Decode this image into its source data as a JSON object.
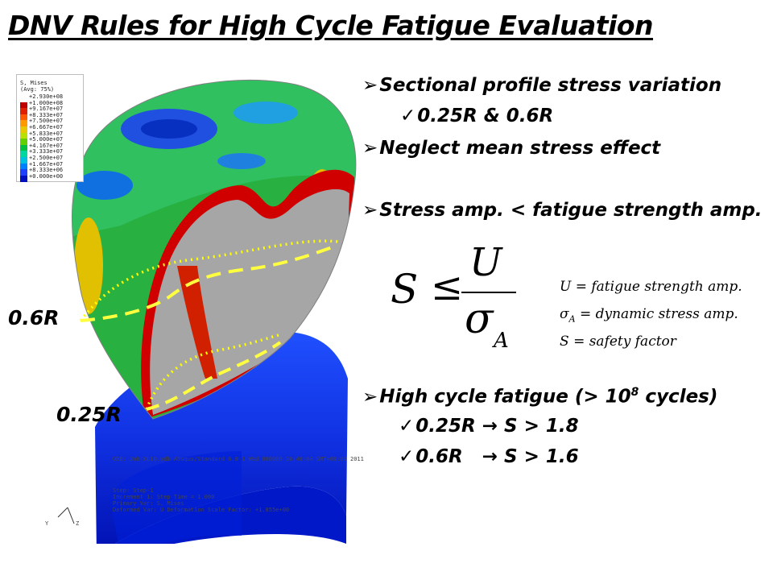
{
  "title": "DNV Rules for High Cycle Fatigue Evaluation",
  "legend": {
    "title_line1": "S, Mises",
    "title_line2": "(Avg: 75%)",
    "entries": [
      {
        "value": "+2.930e+08",
        "color": "#ffffff"
      },
      {
        "value": "+1.000e+08",
        "color": "#c00000"
      },
      {
        "value": "+9.167e+07",
        "color": "#e02000"
      },
      {
        "value": "+8.333e+07",
        "color": "#ff5a00"
      },
      {
        "value": "+7.500e+07",
        "color": "#ff9a00"
      },
      {
        "value": "+6.667e+07",
        "color": "#e8c800"
      },
      {
        "value": "+5.833e+07",
        "color": "#b8e000"
      },
      {
        "value": "+5.000e+07",
        "color": "#60d000"
      },
      {
        "value": "+4.167e+07",
        "color": "#00c040"
      },
      {
        "value": "+3.333e+07",
        "color": "#00d8a0"
      },
      {
        "value": "+2.500e+07",
        "color": "#00c0e0"
      },
      {
        "value": "+1.667e+07",
        "color": "#0080ff"
      },
      {
        "value": "+8.333e+06",
        "color": "#2040ff"
      },
      {
        "value": "+0.000e+00",
        "color": "#0010c0"
      }
    ]
  },
  "labels": {
    "r06": "0.6R",
    "r025": "0.25R"
  },
  "fig_text": {
    "odb_line": "ODB: Job-XL10.odb   Abaqus/Standard 6.8-1   Wed 000000 16:46:04 GMT+08:00 2011",
    "step_line": "Step: Step-1",
    "inc_line": "Increment    1: Step Time =    1.000",
    "primary_line": "Primary Var: S, Mises",
    "deformed_line": "Deformed Var: U   Deformation Scale Factor: +1.855e+00",
    "axis_y": "Y",
    "axis_z": "Z"
  },
  "bullets": [
    {
      "marker": "➢",
      "text": "Sectional profile stress variation"
    },
    {
      "marker": "✓",
      "text": "0.25R & 0.6R"
    },
    {
      "marker": "➢",
      "text": "Neglect mean stress effect"
    },
    {
      "marker": "➢",
      "text": "Stress amp. < fatigue strength amp."
    },
    {
      "marker": "➢",
      "text_before": "High cycle fatigue (> 10",
      "sup": "8",
      "text_after": " cycles)"
    },
    {
      "marker": "✓",
      "text": "0.25R → S > 1.8"
    },
    {
      "marker": "✓",
      "text": "0.6R   → S > 1.6"
    }
  ],
  "formula": {
    "lhs": "S",
    "relation": "≤",
    "numerator": "U",
    "denominator": "σ",
    "denominator_sub": "A",
    "definitions": [
      {
        "sym": "U",
        "sub": "",
        "text": "= fatigue strength amp."
      },
      {
        "sym": "σ",
        "sub": "A",
        "text": "= dynamic stress amp."
      },
      {
        "sym": "S",
        "sub": "",
        "text": "= safety factor"
      }
    ]
  }
}
